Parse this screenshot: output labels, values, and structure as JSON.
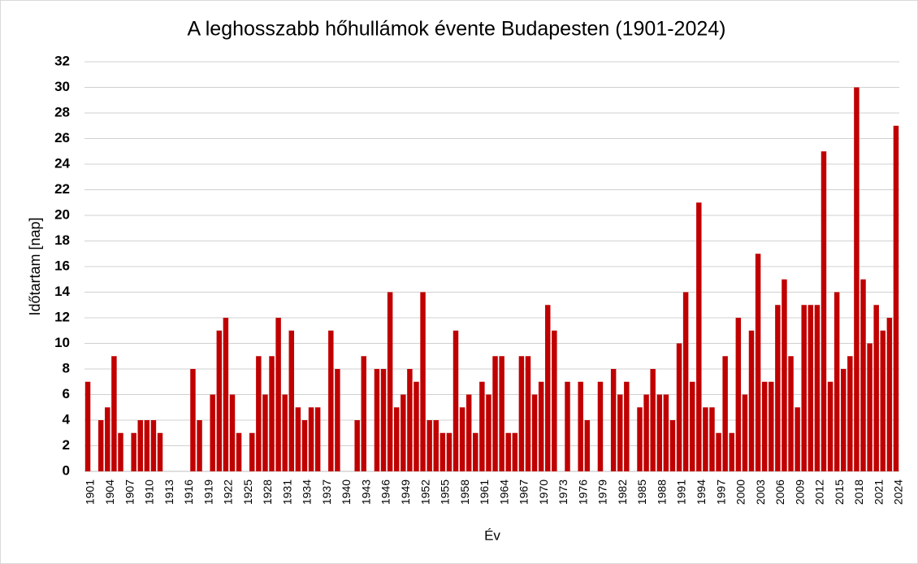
{
  "chart_data": {
    "type": "bar",
    "title": "A leghosszabb hőhullámok évente Budapesten (1901-2024)",
    "x_label": "Év",
    "y_label": "Időtartam [nap]",
    "color": "#c00000",
    "grid": true,
    "ylim": [
      0,
      32
    ],
    "yticks": [
      0,
      2,
      4,
      6,
      8,
      10,
      12,
      14,
      16,
      18,
      20,
      22,
      24,
      26,
      28,
      30,
      32
    ],
    "categories": [
      "1901",
      null,
      null,
      "1904",
      null,
      null,
      "1907",
      null,
      null,
      "1910",
      null,
      null,
      "1913",
      null,
      null,
      "1916",
      null,
      null,
      "1919",
      null,
      null,
      "1922",
      null,
      null,
      "1925",
      null,
      null,
      "1928",
      null,
      null,
      "1931",
      null,
      null,
      "1934",
      null,
      null,
      "1937",
      null,
      null,
      "1940",
      null,
      null,
      "1943",
      null,
      null,
      "1946",
      null,
      null,
      "1949",
      null,
      null,
      "1952",
      null,
      null,
      "1955",
      null,
      null,
      "1958",
      null,
      null,
      "1961",
      null,
      null,
      "1964",
      null,
      null,
      "1967",
      null,
      null,
      "1970",
      null,
      null,
      "1973",
      null,
      null,
      "1976",
      null,
      null,
      "1979",
      null,
      null,
      "1982",
      null,
      null,
      "1985",
      null,
      null,
      "1988",
      null,
      null,
      "1991",
      null,
      null,
      "1994",
      null,
      null,
      "1997",
      null,
      null,
      "2000",
      null,
      null,
      "2003",
      null,
      null,
      "2006",
      null,
      null,
      "2009",
      null,
      null,
      "2012",
      null,
      null,
      "2015",
      null,
      null,
      "2018",
      null,
      null,
      "2021",
      null,
      null,
      "2024"
    ],
    "values": [
      7,
      0,
      4,
      5,
      9,
      3,
      0,
      3,
      4,
      4,
      4,
      3,
      0,
      0,
      0,
      0,
      8,
      4,
      0,
      6,
      11,
      12,
      6,
      3,
      0,
      3,
      9,
      6,
      9,
      12,
      6,
      11,
      5,
      4,
      5,
      5,
      0,
      11,
      8,
      0,
      0,
      4,
      9,
      0,
      8,
      8,
      14,
      5,
      6,
      8,
      7,
      14,
      4,
      4,
      3,
      3,
      11,
      5,
      6,
      3,
      7,
      6,
      9,
      9,
      3,
      3,
      9,
      9,
      6,
      7,
      13,
      11,
      0,
      7,
      0,
      7,
      4,
      0,
      7,
      0,
      8,
      6,
      7,
      0,
      5,
      6,
      8,
      6,
      6,
      4,
      10,
      14,
      7,
      21,
      5,
      5,
      3,
      9,
      3,
      12,
      6,
      11,
      17,
      7,
      7,
      13,
      15,
      9,
      5,
      13,
      13,
      13,
      25,
      7,
      14,
      8,
      9,
      30,
      15,
      10,
      13,
      11,
      12,
      27
    ]
  }
}
